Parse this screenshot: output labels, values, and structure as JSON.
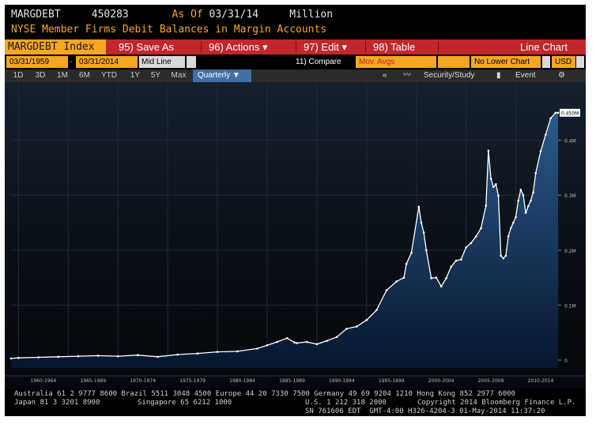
{
  "header": {
    "ticker": "MARGDEBT",
    "value": "450283",
    "asof_label": "As Of",
    "asof_date": "03/31/14",
    "units": "Million",
    "description": "NYSE Member Firms Debit Balances in Margin Accounts"
  },
  "menubar": {
    "index_label": "MARGDEBT Index",
    "save_label": "95) Save As",
    "actions_label": "96) Actions",
    "edit_label": "97) Edit",
    "table_label": "98) Table",
    "view_label": "Line Chart"
  },
  "controls": {
    "start_date": "03/31/1959",
    "end_date": "03/31/2014",
    "line_mode": "Mid Line",
    "compare_label": "11) Compare",
    "movavg_label": "Mov. Avgs",
    "lower_chart": "No Lower Chart",
    "currency": "USD"
  },
  "ranges": {
    "items": [
      "1D",
      "3D",
      "1M",
      "6M",
      "YTD",
      "1Y",
      "5Y",
      "Max"
    ],
    "selected": "Quarterly",
    "security_label": "Security/Study",
    "event_label": "Event"
  },
  "colors": {
    "accent_orange": "#f5a623",
    "menu_red": "#c1272d",
    "line": "#ffffff",
    "area_top": "#1e3f6e",
    "area_bottom": "#07162e"
  },
  "chart_data": {
    "type": "area",
    "title": "",
    "ylabel": "",
    "ylim": [
      0,
      0.5
    ],
    "y_ticks": [
      "0",
      "0.1M",
      "0.2M",
      "0.3M",
      "0.4M"
    ],
    "y_tick_values": [
      0,
      0.1,
      0.2,
      0.3,
      0.4
    ],
    "last_value_label": "0.450M",
    "x_tick_labels": [
      "1960-1964",
      "1965-1969",
      "1970-1974",
      "1975-1979",
      "1980-1984",
      "1985-1989",
      "1990-1994",
      "1995-1999",
      "2000-2004",
      "2005-2009",
      "2010-2014"
    ],
    "x_range": [
      1959.25,
      2014.25
    ],
    "series": [
      {
        "x": [
          1959.25,
          1960,
          1962,
          1964,
          1966,
          1968,
          1970,
          1972,
          1974,
          1976,
          1978,
          1980,
          1982,
          1984,
          1985,
          1986,
          1987,
          1987.75,
          1988,
          1989,
          1990,
          1991,
          1992,
          1993,
          1994,
          1995,
          1996,
          1997,
          1998,
          1998.75,
          1999,
          1999.5,
          2000.25,
          2000.5,
          2000.75,
          2001,
          2001.5,
          2002,
          2002.5,
          2003,
          2003.5,
          2004,
          2004.5,
          2005,
          2005.5,
          2006,
          2006.5,
          2007,
          2007.25,
          2007.5,
          2007.75,
          2008,
          2008.25,
          2008.5,
          2008.75,
          2009,
          2009.25,
          2009.5,
          2009.75,
          2010,
          2010.25,
          2010.5,
          2010.75,
          2011,
          2011.25,
          2011.5,
          2011.75,
          2012,
          2012.5,
          2013,
          2013.5,
          2014,
          2014.25
        ],
        "values": [
          0.003,
          0.004,
          0.005,
          0.006,
          0.007,
          0.008,
          0.007,
          0.009,
          0.006,
          0.01,
          0.012,
          0.015,
          0.016,
          0.021,
          0.027,
          0.033,
          0.04,
          0.032,
          0.031,
          0.033,
          0.029,
          0.035,
          0.042,
          0.057,
          0.061,
          0.073,
          0.091,
          0.127,
          0.143,
          0.15,
          0.175,
          0.195,
          0.279,
          0.25,
          0.232,
          0.2,
          0.149,
          0.15,
          0.134,
          0.149,
          0.17,
          0.181,
          0.183,
          0.205,
          0.213,
          0.225,
          0.24,
          0.281,
          0.381,
          0.33,
          0.315,
          0.32,
          0.299,
          0.19,
          0.185,
          0.19,
          0.225,
          0.24,
          0.25,
          0.26,
          0.29,
          0.31,
          0.3,
          0.268,
          0.28,
          0.29,
          0.305,
          0.34,
          0.38,
          0.41,
          0.44,
          0.45,
          0.45
        ]
      }
    ]
  },
  "footer": {
    "line1": "Australia 61 2 9777 8600 Brazil 5511 3048 4500 Europe 44 20 7330 7500 Germany 49 69 9204 1210 Hong Kong 852 2977 6000",
    "line2a": "Japan 81 3 3201 8900",
    "line2b": "Singapore 65 6212 1000",
    "line2c": "U.S. 1 212 318 2000",
    "line2d": "Copyright 2014 Bloomberg Finance L.P.",
    "line3": "SN 761606 EDT  GMT-4:00 H326-4204-3 01-May-2014 11:37:20"
  }
}
